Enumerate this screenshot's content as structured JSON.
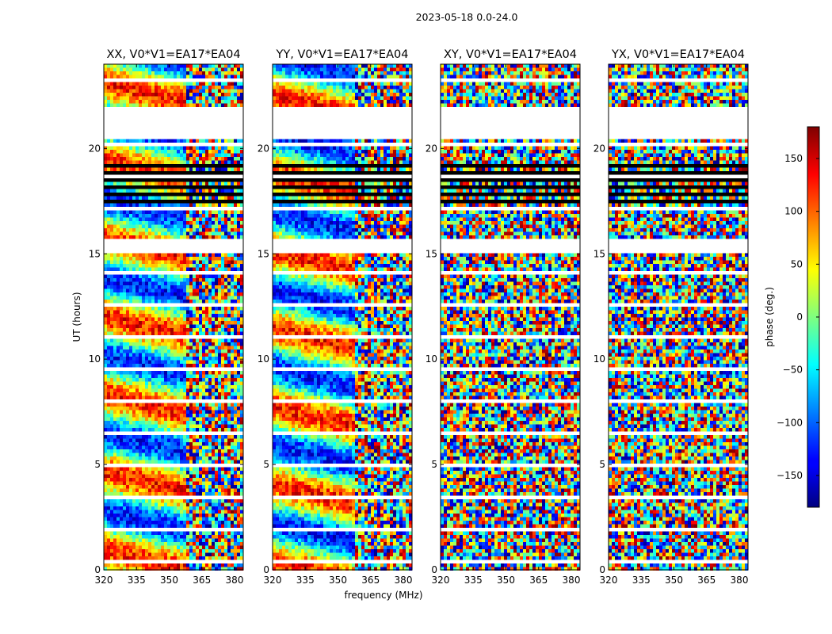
{
  "chart_data": {
    "type": "heatmap",
    "suptitle": "2023-05-18 0.0-24.0",
    "xlabel": "frequency (MHz)",
    "ylabel": "UT (hours)",
    "xlim": [
      320,
      384
    ],
    "ylim": [
      0,
      24
    ],
    "xticks": [
      "320",
      "335",
      "350",
      "365",
      "380"
    ],
    "xtick_values": [
      320,
      335,
      350,
      365,
      380
    ],
    "yticks": [
      "0",
      "5",
      "10",
      "15",
      "20"
    ],
    "ytick_values": [
      0,
      5,
      10,
      15,
      20
    ],
    "panels": [
      {
        "title": "XX, V0*V1=EA17*EA04",
        "pol": "XX"
      },
      {
        "title": "YY, V0*V1=EA17*EA04",
        "pol": "YY"
      },
      {
        "title": "XY, V0*V1=EA17*EA04",
        "pol": "XY"
      },
      {
        "title": "YX, V0*V1=EA17*EA04",
        "pol": "YX"
      }
    ],
    "colorbar": {
      "label": "phase (deg.)",
      "range": [
        -180,
        180
      ],
      "ticks": [
        "150",
        "100",
        "50",
        "0",
        "−50",
        "−100",
        "−150"
      ],
      "tick_values": [
        150,
        100,
        50,
        0,
        -50,
        -100,
        -150
      ],
      "colormap": "jet"
    },
    "data_gaps_ut": [
      [
        20.5,
        22.0
      ],
      [
        15.0,
        15.6
      ]
    ]
  }
}
